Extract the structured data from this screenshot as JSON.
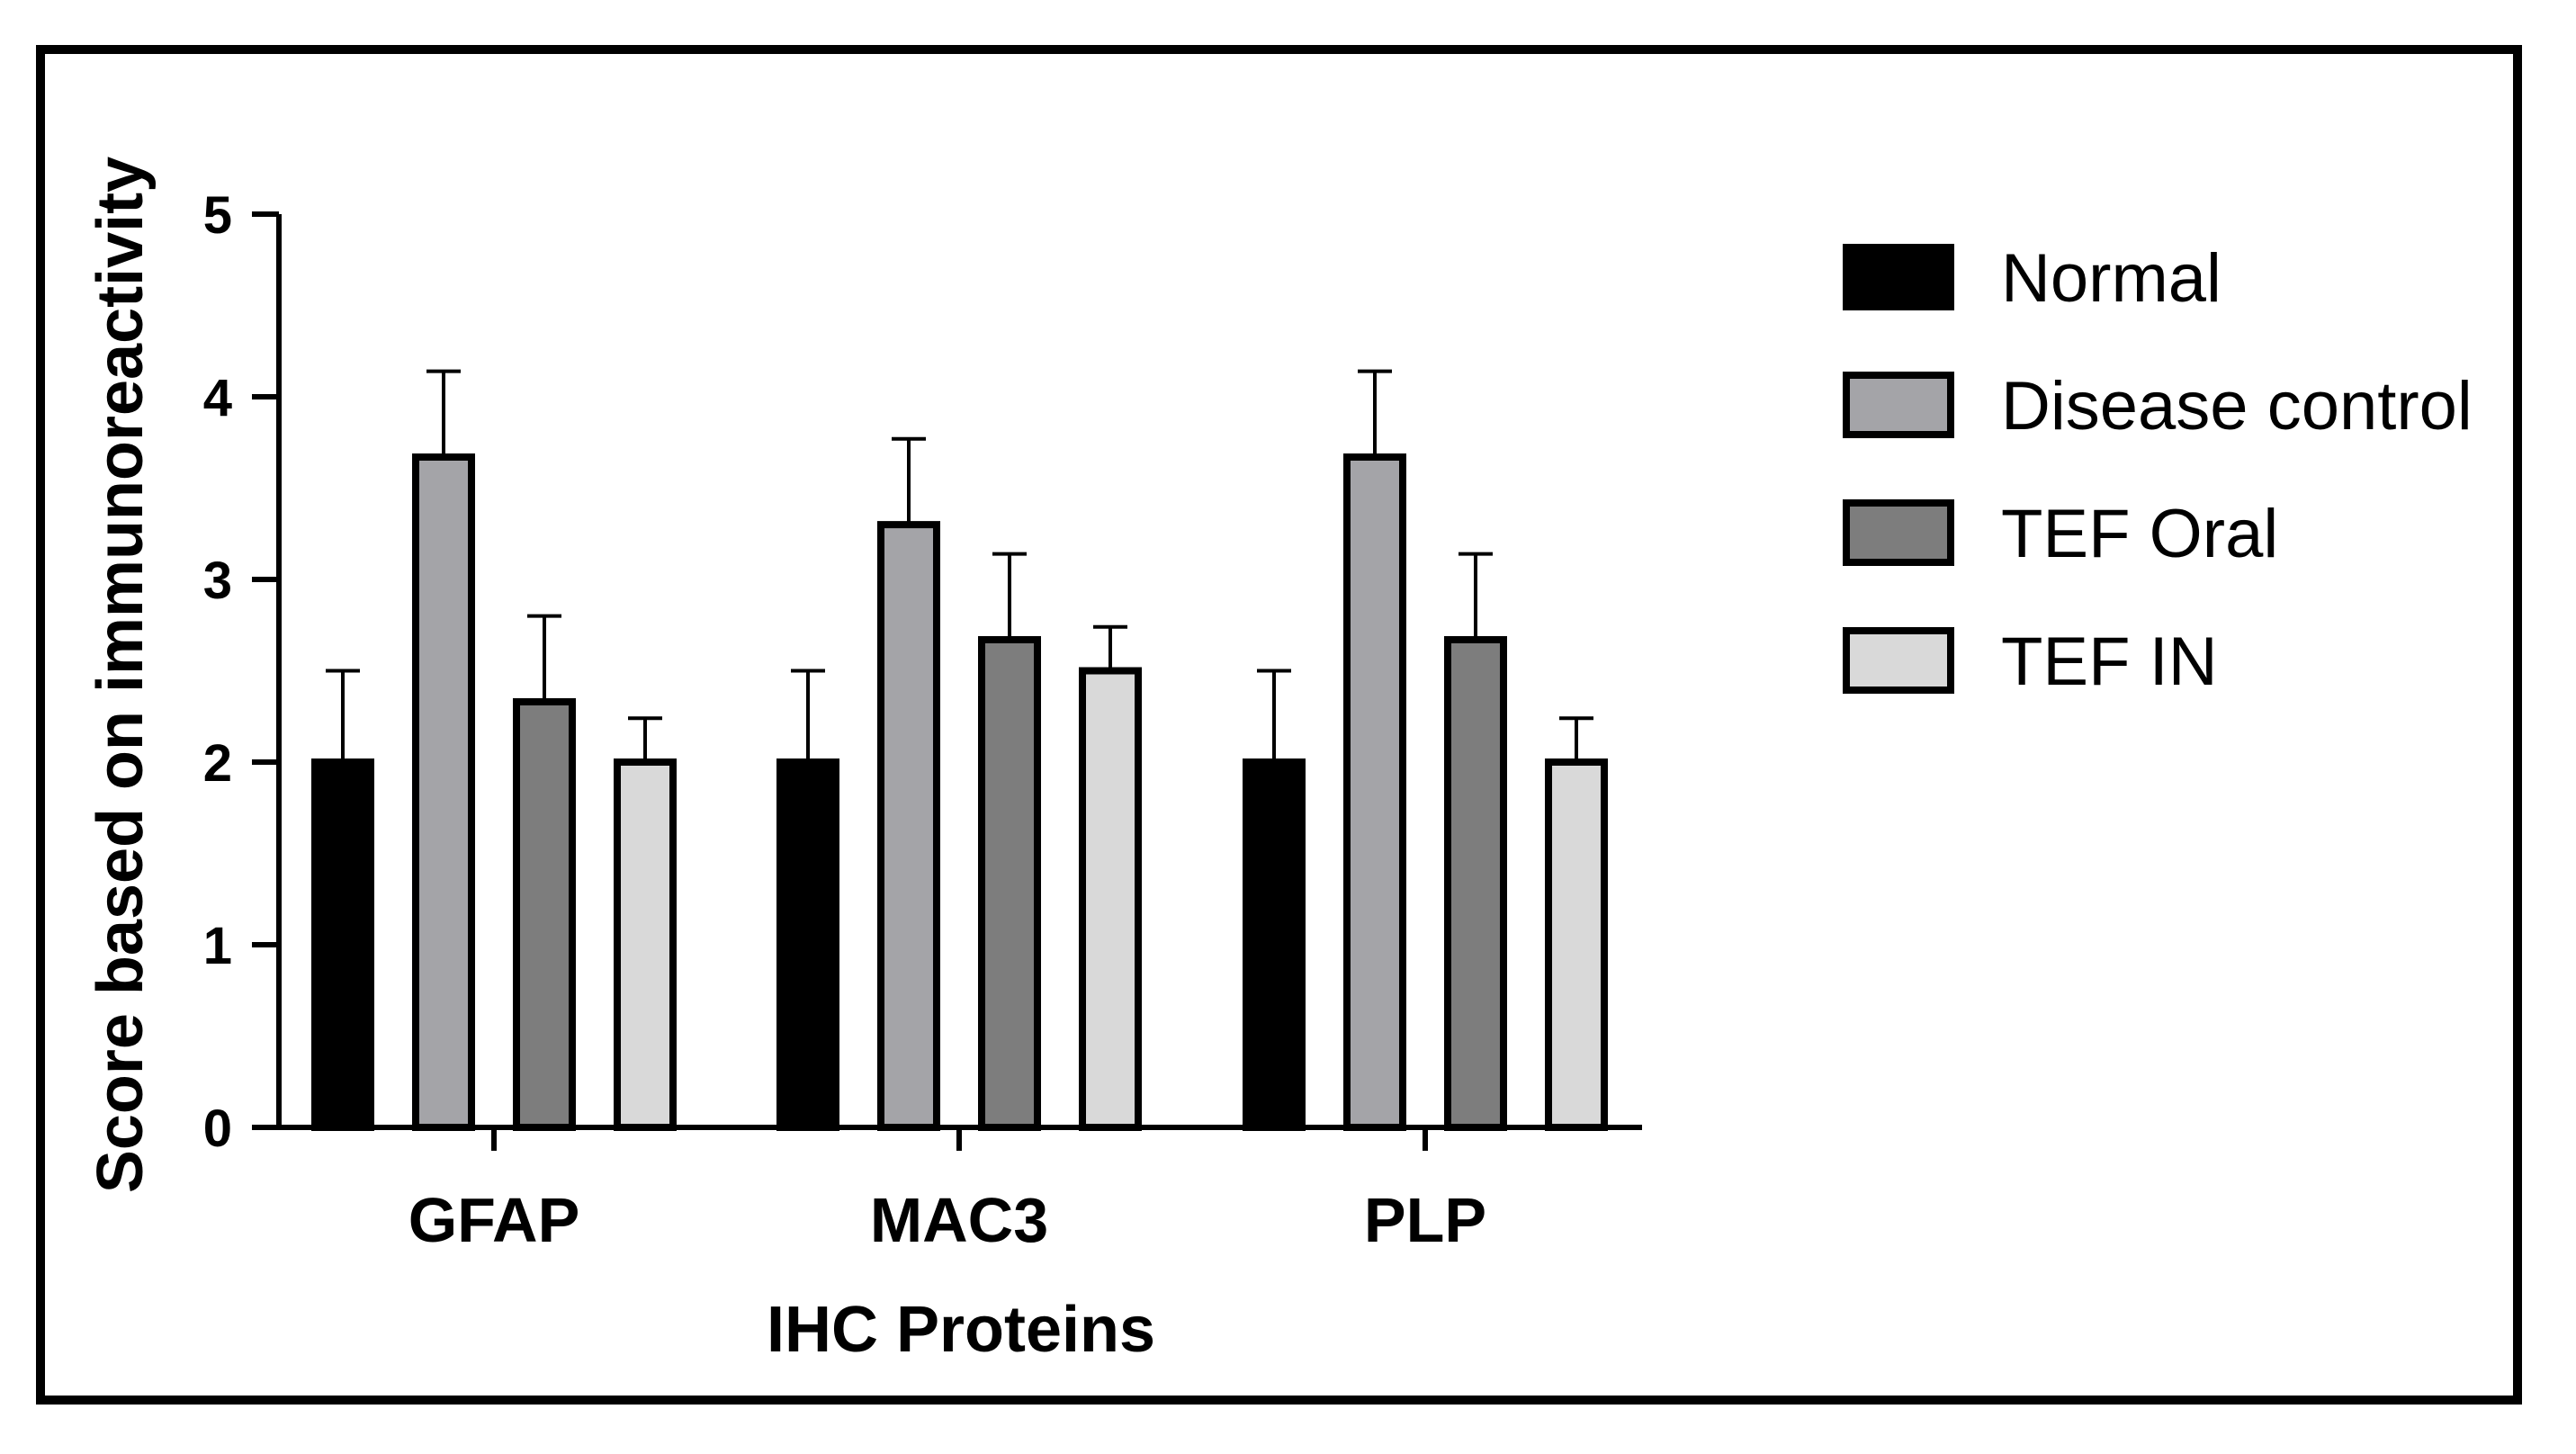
{
  "chart_data": {
    "type": "bar",
    "title": "",
    "xlabel": "IHC Proteins",
    "ylabel": "Score based on immunoreactivity",
    "ylim": [
      0,
      5
    ],
    "yticks": [
      "0",
      "1",
      "2",
      "3",
      "4",
      "5"
    ],
    "categories": [
      "GFAP",
      "MAC3",
      "PLP"
    ],
    "legend_position": "right",
    "series": [
      {
        "name": "Normal",
        "color": "#000000",
        "values": [
          2.0,
          2.0,
          2.0
        ],
        "errors": [
          0.5,
          0.5,
          0.5
        ]
      },
      {
        "name": "Disease control",
        "color": "#a4a4a8",
        "values": [
          3.67,
          3.3,
          3.67
        ],
        "errors": [
          0.47,
          0.47,
          0.47
        ]
      },
      {
        "name": "TEF Oral",
        "color": "#7d7d7d",
        "values": [
          2.33,
          2.67,
          2.67
        ],
        "errors": [
          0.47,
          0.47,
          0.47
        ]
      },
      {
        "name": "TEF IN",
        "color": "#d9d9d9",
        "values": [
          2.0,
          2.5,
          2.0
        ],
        "errors": [
          0.24,
          0.24,
          0.24
        ]
      }
    ]
  }
}
